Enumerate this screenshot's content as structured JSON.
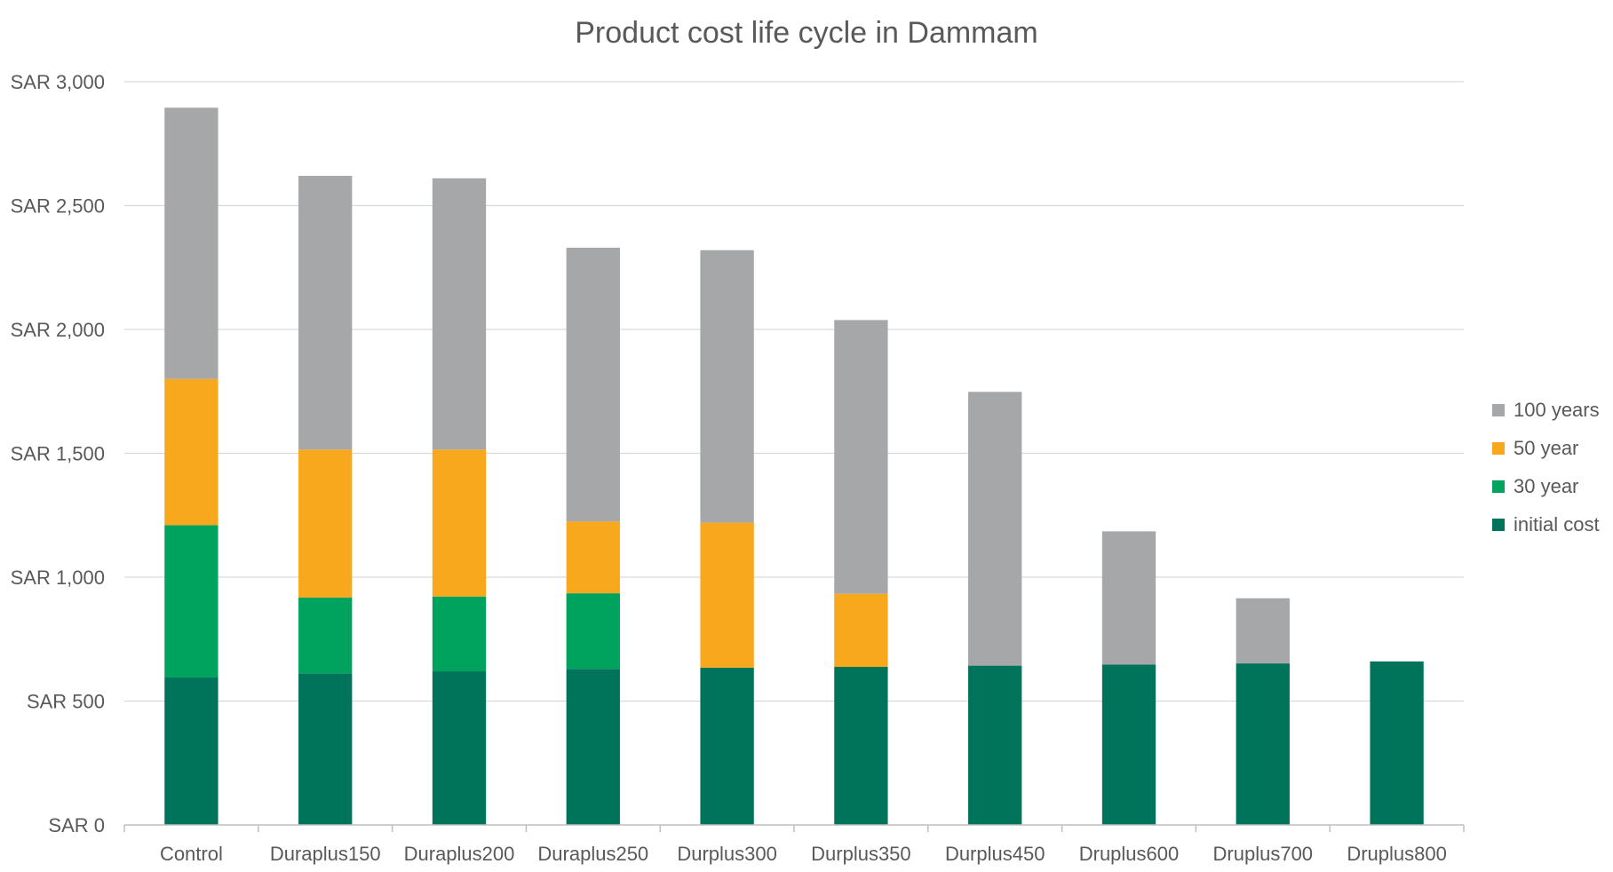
{
  "chart_data": {
    "type": "bar",
    "stacked": true,
    "title": "Product cost life cycle in Dammam",
    "xlabel": "",
    "ylabel": "",
    "ylim": [
      0,
      3000
    ],
    "yticks": [
      0,
      500,
      1000,
      1500,
      2000,
      2500,
      3000
    ],
    "ytick_labels": [
      "SAR 0",
      "SAR 500",
      "SAR 1,000",
      "SAR 1,500",
      "SAR 2,000",
      "SAR 2,500",
      "SAR 3,000"
    ],
    "grid": true,
    "legend_position": "right",
    "categories": [
      "Control",
      "Duraplus150",
      "Duraplus200",
      "Duraplus250",
      "Durplus300",
      "Durplus350",
      "Durplus450",
      "Druplus600",
      "Druplus700",
      "Druplus800"
    ],
    "series": [
      {
        "name": "initial cost",
        "color": "#00745a",
        "values": [
          595,
          612,
          620,
          630,
          635,
          638,
          643,
          647,
          652,
          660
        ]
      },
      {
        "name": "30 year",
        "color": "#00a35e",
        "values": [
          615,
          306,
          302,
          305,
          0,
          0,
          0,
          0,
          0,
          0
        ]
      },
      {
        "name": "50 year",
        "color": "#f8a81c",
        "values": [
          590,
          597,
          593,
          290,
          585,
          295,
          0,
          0,
          0,
          0
        ]
      },
      {
        "name": "100 years",
        "color": "#a6a7a8",
        "values": [
          1095,
          1105,
          1095,
          1105,
          1100,
          1105,
          1105,
          538,
          263,
          0
        ]
      }
    ],
    "legend_order": [
      "100 years",
      "50 year",
      "30 year",
      "initial cost"
    ]
  }
}
